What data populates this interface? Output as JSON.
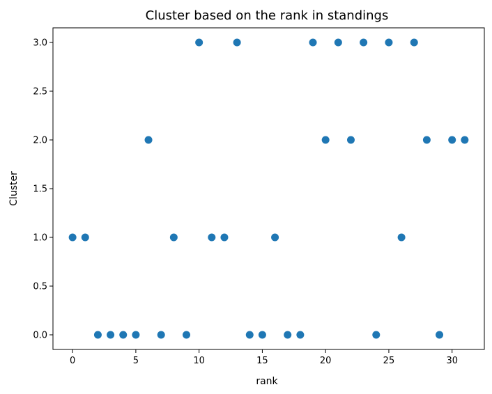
{
  "chart_data": {
    "type": "scatter",
    "title": "Cluster based on the rank in standings",
    "xlabel": "rank",
    "ylabel": "Cluster",
    "xlim": [
      -1.55,
      32.55
    ],
    "ylim": [
      -0.15,
      3.15
    ],
    "xticks": [
      0,
      5,
      10,
      15,
      20,
      25,
      30
    ],
    "xtick_labels": [
      "0",
      "5",
      "10",
      "15",
      "20",
      "25",
      "30"
    ],
    "yticks": [
      0,
      0.5,
      1,
      1.5,
      2,
      2.5,
      3
    ],
    "ytick_labels": [
      "0.0",
      "0.5",
      "1.0",
      "1.5",
      "2.0",
      "2.5",
      "3.0"
    ],
    "grid": false,
    "marker_color": "#1f77b4",
    "x": [
      0,
      1,
      2,
      3,
      4,
      5,
      6,
      7,
      8,
      9,
      10,
      11,
      12,
      13,
      14,
      15,
      16,
      17,
      18,
      19,
      20,
      21,
      22,
      23,
      24,
      25,
      26,
      27,
      28,
      29,
      30,
      31
    ],
    "y": [
      1,
      1,
      0,
      0,
      0,
      0,
      2,
      0,
      1,
      0,
      3,
      1,
      1,
      3,
      0,
      0,
      1,
      0,
      0,
      3,
      2,
      3,
      2,
      3,
      0,
      3,
      1,
      3,
      2,
      0,
      2,
      2
    ]
  }
}
